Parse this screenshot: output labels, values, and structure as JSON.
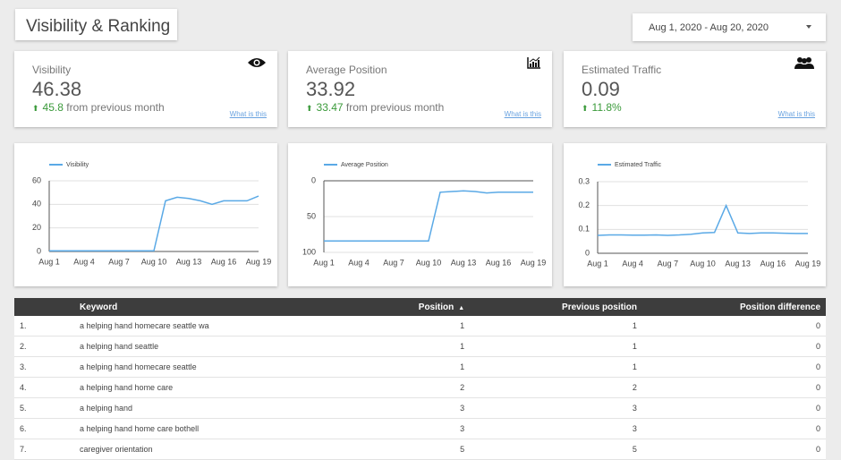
{
  "header": {
    "title": "Visibility & Ranking",
    "date_range": "Aug 1, 2020 - Aug 20, 2020"
  },
  "kpis": [
    {
      "label": "Visibility",
      "value": "46.38",
      "change": "45.8",
      "change_text": "from previous month",
      "link": "What is this"
    },
    {
      "label": "Average Position",
      "value": "33.92",
      "change": "33.47",
      "change_text": "from previous month",
      "link": "What is this"
    },
    {
      "label": "Estimated Traffic",
      "value": "0.09",
      "change": "11.8%",
      "link": "What is this"
    }
  ],
  "chart_data": [
    {
      "type": "line",
      "categories": [
        "Aug 1",
        null,
        null,
        "Aug 4",
        null,
        null,
        "Aug 7",
        null,
        null,
        "Aug 10",
        null,
        null,
        "Aug 13",
        null,
        null,
        "Aug 16",
        null,
        null,
        "Aug 19"
      ],
      "series": [
        {
          "name": "Visibility",
          "color": "#5aa9e6",
          "values": [
            0.5,
            0.5,
            0.5,
            0.5,
            0.5,
            0.5,
            0.5,
            0.5,
            0.5,
            0.5,
            43,
            46,
            45,
            43,
            40,
            43,
            43,
            43,
            47
          ]
        }
      ],
      "ylim": [
        0,
        60
      ],
      "yticks": [
        0,
        20,
        40,
        60
      ],
      "grid": true
    },
    {
      "type": "line",
      "categories": [
        "Aug 1",
        null,
        null,
        "Aug 4",
        null,
        null,
        "Aug 7",
        null,
        null,
        "Aug 10",
        null,
        null,
        "Aug 13",
        null,
        null,
        "Aug 16",
        null,
        null,
        "Aug 19"
      ],
      "series": [
        {
          "name": "Average Position",
          "color": "#5aa9e6",
          "values": [
            84,
            84,
            84,
            84,
            84,
            84,
            84,
            84,
            84,
            84,
            16,
            15,
            14,
            15,
            17,
            16,
            16,
            16,
            16
          ]
        }
      ],
      "ylim": [
        100,
        0
      ],
      "yticks": [
        0,
        50,
        100
      ],
      "grid": true
    },
    {
      "type": "line",
      "categories": [
        "Aug 1",
        null,
        null,
        "Aug 4",
        null,
        null,
        "Aug 7",
        null,
        null,
        "Aug 10",
        null,
        null,
        "Aug 13",
        null,
        null,
        "Aug 16",
        null,
        null,
        "Aug 19"
      ],
      "series": [
        {
          "name": "Estimated Traffic",
          "color": "#5aa9e6",
          "values": [
            0.075,
            0.077,
            0.077,
            0.076,
            0.076,
            0.077,
            0.075,
            0.077,
            0.08,
            0.085,
            0.087,
            0.2,
            0.085,
            0.083,
            0.085,
            0.085,
            0.084,
            0.083,
            0.083
          ]
        }
      ],
      "ylim": [
        0,
        0.3
      ],
      "yticks": [
        0,
        0.1,
        0.2,
        0.3
      ],
      "grid": true
    }
  ],
  "table": {
    "columns": [
      "Keyword",
      "Position",
      "Previous position",
      "Position difference"
    ],
    "rows": [
      [
        "1.",
        "a helping hand homecare seattle wa",
        "1",
        "1",
        "0"
      ],
      [
        "2.",
        "a helping hand seattle",
        "1",
        "1",
        "0"
      ],
      [
        "3.",
        "a helping hand homecare seattle",
        "1",
        "1",
        "0"
      ],
      [
        "4.",
        "a helping hand home care",
        "2",
        "2",
        "0"
      ],
      [
        "5.",
        "a helping hand",
        "3",
        "3",
        "0"
      ],
      [
        "6.",
        "a helping hand home care bothell",
        "3",
        "3",
        "0"
      ],
      [
        "7.",
        "caregiver orientation",
        "5",
        "5",
        "0"
      ]
    ]
  }
}
